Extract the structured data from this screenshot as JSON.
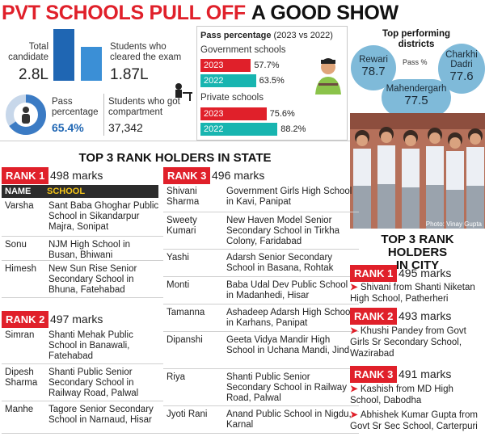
{
  "header": {
    "title_red": "PVT SCHOOLS PULL OFF",
    "title_black": "A GOOD SHOW"
  },
  "stats": {
    "total_label": "Total candidate",
    "total_value": "2.8L",
    "cleared_label": "Students who cleared the exam",
    "cleared_value": "1.87L",
    "pass_label": "Pass percentage",
    "pass_value": "65.4%",
    "pass_fraction": 0.654,
    "comp_label": "Students who got compartment",
    "comp_value": "37,342"
  },
  "pass_pct": {
    "title": "Pass percentage",
    "subtitle": "(2023 vs 2022)",
    "gov_label": "Government schools",
    "private_label": "Private schools",
    "gov": [
      {
        "year": "2023",
        "value": "57.7%",
        "num": 57.7,
        "color": "#e0202a"
      },
      {
        "year": "2022",
        "value": "63.5%",
        "num": 63.5,
        "color": "#18b5b0"
      }
    ],
    "private": [
      {
        "year": "2023",
        "value": "75.6%",
        "num": 75.6,
        "color": "#e0202a"
      },
      {
        "year": "2022",
        "value": "88.2%",
        "num": 88.2,
        "color": "#18b5b0"
      }
    ]
  },
  "districts": {
    "title_line1": "Top performing",
    "title_line2": "districts",
    "pass_label": "Pass %",
    "items": [
      {
        "name": "Rewari",
        "value": "78.7"
      },
      {
        "name": "Charkhi Dadri",
        "value": "77.6"
      },
      {
        "name": "Mahendergarh",
        "value": "77.5"
      }
    ]
  },
  "photo_credit": "Photo: Vinay Gupta",
  "state": {
    "title": "TOP 3 RANK HOLDERS IN STATE",
    "col_name": "NAME",
    "col_school": "SCHOOL",
    "rank1": {
      "label": "RANK 1",
      "marks": "498 marks",
      "rows": [
        {
          "name": "Varsha",
          "school": "Sant Baba Ghoghar Public School in Sikandarpur Majra, Sonipat"
        },
        {
          "name": "Sonu",
          "school": "NJM High School in Busan, Bhiwani"
        },
        {
          "name": "Himesh",
          "school": "New Sun Rise Senior Secondary School in Bhuna, Fatehabad"
        }
      ]
    },
    "rank2": {
      "label": "RANK 2",
      "marks": "497 marks",
      "rows": [
        {
          "name": "Simran",
          "school": "Shanti Mehak Public School in Banawali, Fatehabad"
        },
        {
          "name": "Dipesh Sharma",
          "school": "Shanti Public Senior Secondary School in Railway Road, Palwal"
        },
        {
          "name": "Manhe",
          "school": "Tagore Senior Secondary School in Narnaud, Hisar"
        }
      ]
    },
    "rank3": {
      "label": "RANK 3",
      "marks": "496 marks",
      "rows": [
        {
          "name": "Shivani Sharma",
          "school": "Government Girls High School in Kavi, Panipat"
        },
        {
          "name": "Sweety Kumari",
          "school": "New Haven Model Senior Secondary School in Tirkha Colony, Faridabad"
        },
        {
          "name": "Yashi",
          "school": "Adarsh Senior Secondary School in Basana, Rohtak"
        },
        {
          "name": "Monti",
          "school": "Baba Udal Dev Public School in Madanhedi, Hisar"
        },
        {
          "name": "Tamanna",
          "school": "Ashadeep Adarsh High School in Karhans, Panipat"
        },
        {
          "name": "Dipanshi",
          "school": "Geeta Vidya Mandir High School in Uchana Mandi, Jind"
        },
        {
          "name": "Riya",
          "school": "Shanti Public Senior Secondary School in Railway Road, Palwal"
        },
        {
          "name": "Jyoti Rani",
          "school": "Anand Public School in Nigdu, Karnal"
        }
      ]
    }
  },
  "city": {
    "title_line1": "TOP 3 RANK HOLDERS",
    "title_line2": "IN CITY",
    "rank1": {
      "label": "RANK 1",
      "marks": "495 marks",
      "lines": [
        "Shivani from Shanti Niketan High School, Patherheri"
      ]
    },
    "rank2": {
      "label": "RANK 2",
      "marks": "493 marks",
      "lines": [
        "Khushi Pandey from Govt Girls Sr Secondary School, Wazirabad"
      ]
    },
    "rank3": {
      "label": "RANK 3",
      "marks": "491 marks",
      "lines": [
        "Kashish from MD High School, Dabodha",
        "Abhishek Kumar Gupta from Govt Sr Sec School, Carterpuri"
      ]
    }
  }
}
